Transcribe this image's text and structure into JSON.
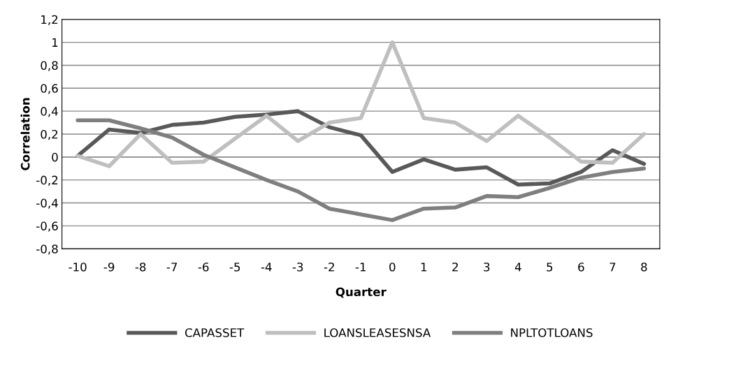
{
  "chart_data": {
    "type": "line",
    "xlabel": "Quarter",
    "ylabel": "Correlation",
    "categories": [
      "-10",
      "-9",
      "-8",
      "-7",
      "-6",
      "-5",
      "-4",
      "-3",
      "-2",
      "-1",
      "0",
      "1",
      "2",
      "3",
      "4",
      "5",
      "6",
      "7",
      "8"
    ],
    "series": [
      {
        "name": "CAPASSET",
        "color": "#595959",
        "values": [
          0.01,
          0.24,
          0.21,
          0.28,
          0.3,
          0.35,
          0.37,
          0.4,
          0.26,
          0.19,
          -0.13,
          -0.02,
          -0.11,
          -0.09,
          -0.24,
          -0.23,
          -0.13,
          0.06,
          -0.06
        ]
      },
      {
        "name": "LOANSLEASESNSA",
        "color": "#bfbfbf",
        "values": [
          0.01,
          -0.08,
          0.2,
          -0.05,
          -0.04,
          0.16,
          0.36,
          0.14,
          0.3,
          0.34,
          1.0,
          0.34,
          0.3,
          0.14,
          0.36,
          0.17,
          -0.04,
          -0.05,
          0.2
        ]
      },
      {
        "name": "NPLTOTLOANS",
        "color": "#7f7f7f",
        "values": [
          0.32,
          0.32,
          0.25,
          0.17,
          0.02,
          -0.09,
          -0.2,
          -0.3,
          -0.45,
          -0.5,
          -0.55,
          -0.45,
          -0.44,
          -0.34,
          -0.35,
          -0.27,
          -0.18,
          -0.13,
          -0.1
        ]
      }
    ],
    "ylim": [
      -0.8,
      1.2
    ],
    "yticks": [
      {
        "value": -0.8,
        "label": "-0,8"
      },
      {
        "value": -0.6,
        "label": "-0,6"
      },
      {
        "value": -0.4,
        "label": "-0,4"
      },
      {
        "value": -0.2,
        "label": "-0,2"
      },
      0,
      {
        "value": 0.2,
        "label": "0,2"
      },
      {
        "value": 0.4,
        "label": "0,4"
      },
      {
        "value": 0.6,
        "label": "0,6"
      },
      {
        "value": 0.8,
        "label": "0,8"
      },
      1,
      {
        "value": 1.2,
        "label": "1,2"
      }
    ],
    "grid": "y",
    "legend": "bottom",
    "marker": "none",
    "line_style": "solid"
  }
}
